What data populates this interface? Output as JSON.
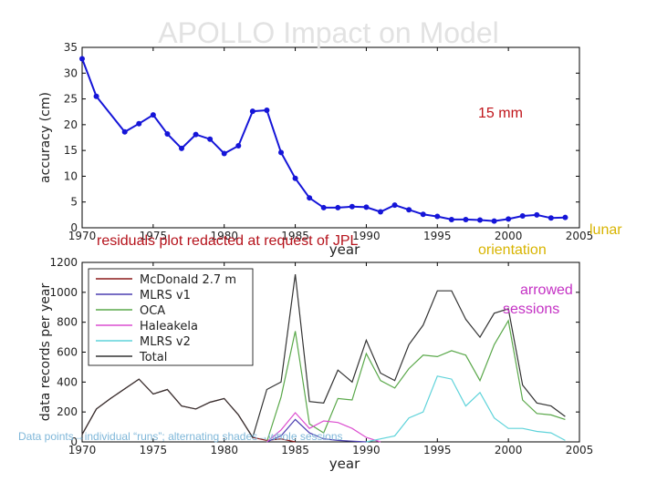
{
  "slide": {
    "title": "APOLLO Impact on Model",
    "note_15mm": "15 mm",
    "redacted_note": "residuals plot redacted at request of JPL",
    "lunar_label": "lunar",
    "orientation_label": "orientation",
    "arrowed_label": "arrowed",
    "sessions_label": "sessions",
    "datapoints_note": "Data points→individual “runs”; alternating shades→whole sessions",
    "colors": {
      "title": "#e2e2e2",
      "red_note": "#c0141a",
      "lunar": "#d8b400",
      "sessions": "#c431c4",
      "datapoints": "#7fb7d9"
    }
  },
  "chart_data": [
    {
      "type": "line",
      "xlabel": "year",
      "ylabel": "accuracy (cm)",
      "xlim": [
        1970,
        2005
      ],
      "ylim": [
        0,
        35
      ],
      "xticks": [
        "1970",
        "1975",
        "1980",
        "1985",
        "1990",
        "1995",
        "2000",
        "2005"
      ],
      "yticks": [
        "0",
        "5",
        "10",
        "15",
        "20",
        "25",
        "30",
        "35"
      ],
      "grid": false,
      "color": "#1515d8",
      "markers": true,
      "x": [
        1970,
        1971,
        1973,
        1974,
        1975,
        1976,
        1977,
        1978,
        1979,
        1980,
        1981,
        1982,
        1983,
        1984,
        1985,
        1986,
        1987,
        1988,
        1989,
        1990,
        1991,
        1992,
        1993,
        1994,
        1995,
        1996,
        1997,
        1998,
        1999,
        2000,
        2001,
        2002,
        2003,
        2004
      ],
      "y": [
        32.8,
        25.5,
        18.6,
        20.2,
        21.9,
        18.2,
        15.4,
        18.1,
        17.2,
        14.4,
        15.9,
        22.6,
        22.8,
        14.6,
        9.6,
        5.8,
        3.9,
        3.9,
        4.1,
        4.0,
        3.1,
        4.4,
        3.5,
        2.6,
        2.2,
        1.6,
        1.6,
        1.5,
        1.3,
        1.7,
        2.3,
        2.5,
        1.9,
        2.0
      ]
    },
    {
      "type": "line",
      "xlabel": "year",
      "ylabel": "data records per year",
      "xlim": [
        1970,
        2005
      ],
      "ylim": [
        0,
        1200
      ],
      "xticks": [
        "1970",
        "1975",
        "1980",
        "1985",
        "1990",
        "1995",
        "2000",
        "2005"
      ],
      "yticks": [
        "0",
        "200",
        "400",
        "600",
        "800",
        "1000",
        "1200"
      ],
      "grid": false,
      "legend": "top-left",
      "series": [
        {
          "name": "McDonald 2.7 m",
          "color": "#8b1a1a",
          "x": [
            1970,
            1971,
            1972,
            1973,
            1974,
            1975,
            1976,
            1977,
            1978,
            1979,
            1980,
            1981,
            1982,
            1983,
            1984,
            1985
          ],
          "y": [
            50,
            220,
            290,
            355,
            420,
            320,
            350,
            240,
            220,
            265,
            290,
            180,
            30,
            10,
            20,
            0
          ]
        },
        {
          "name": "MLRS v1",
          "color": "#4b3fb0",
          "x": [
            1983,
            1984,
            1985,
            1986,
            1987,
            1988,
            1989,
            1990
          ],
          "y": [
            0,
            40,
            150,
            60,
            20,
            10,
            5,
            0
          ]
        },
        {
          "name": "OCA",
          "color": "#5aa84a",
          "x": [
            1983,
            1984,
            1985,
            1986,
            1987,
            1988,
            1989,
            1990,
            1991,
            1992,
            1993,
            1994,
            1995,
            1996,
            1997,
            1998,
            1999,
            2000,
            2001,
            2002,
            2003,
            2004
          ],
          "y": [
            0,
            300,
            740,
            120,
            60,
            290,
            280,
            590,
            410,
            360,
            490,
            580,
            570,
            610,
            580,
            410,
            650,
            810,
            280,
            190,
            180,
            150
          ]
        },
        {
          "name": "Haleakela",
          "color": "#dc4fd0",
          "x": [
            1983,
            1984,
            1985,
            1986,
            1987,
            1988,
            1989,
            1990,
            1991
          ],
          "y": [
            0,
            80,
            195,
            90,
            140,
            130,
            90,
            30,
            0
          ]
        },
        {
          "name": "MLRS v2",
          "color": "#5fd3da",
          "x": [
            1990,
            1991,
            1992,
            1993,
            1994,
            1995,
            1996,
            1997,
            1998,
            1999,
            2000,
            2001,
            2002,
            2003,
            2004
          ],
          "y": [
            0,
            20,
            40,
            160,
            200,
            440,
            420,
            240,
            330,
            160,
            90,
            90,
            70,
            60,
            10
          ]
        },
        {
          "name": "Total",
          "color": "#333333",
          "x": [
            1970,
            1971,
            1972,
            1973,
            1974,
            1975,
            1976,
            1977,
            1978,
            1979,
            1980,
            1981,
            1982,
            1983,
            1984,
            1985,
            1986,
            1987,
            1988,
            1989,
            1990,
            1991,
            1992,
            1993,
            1994,
            1995,
            1996,
            1997,
            1998,
            1999,
            2000,
            2001,
            2002,
            2003,
            2004
          ],
          "y": [
            50,
            220,
            290,
            355,
            420,
            320,
            350,
            240,
            220,
            265,
            290,
            180,
            30,
            350,
            400,
            1120,
            270,
            260,
            480,
            400,
            680,
            460,
            410,
            650,
            780,
            1010,
            1010,
            820,
            700,
            860,
            890,
            380,
            260,
            240,
            170
          ]
        }
      ]
    }
  ]
}
